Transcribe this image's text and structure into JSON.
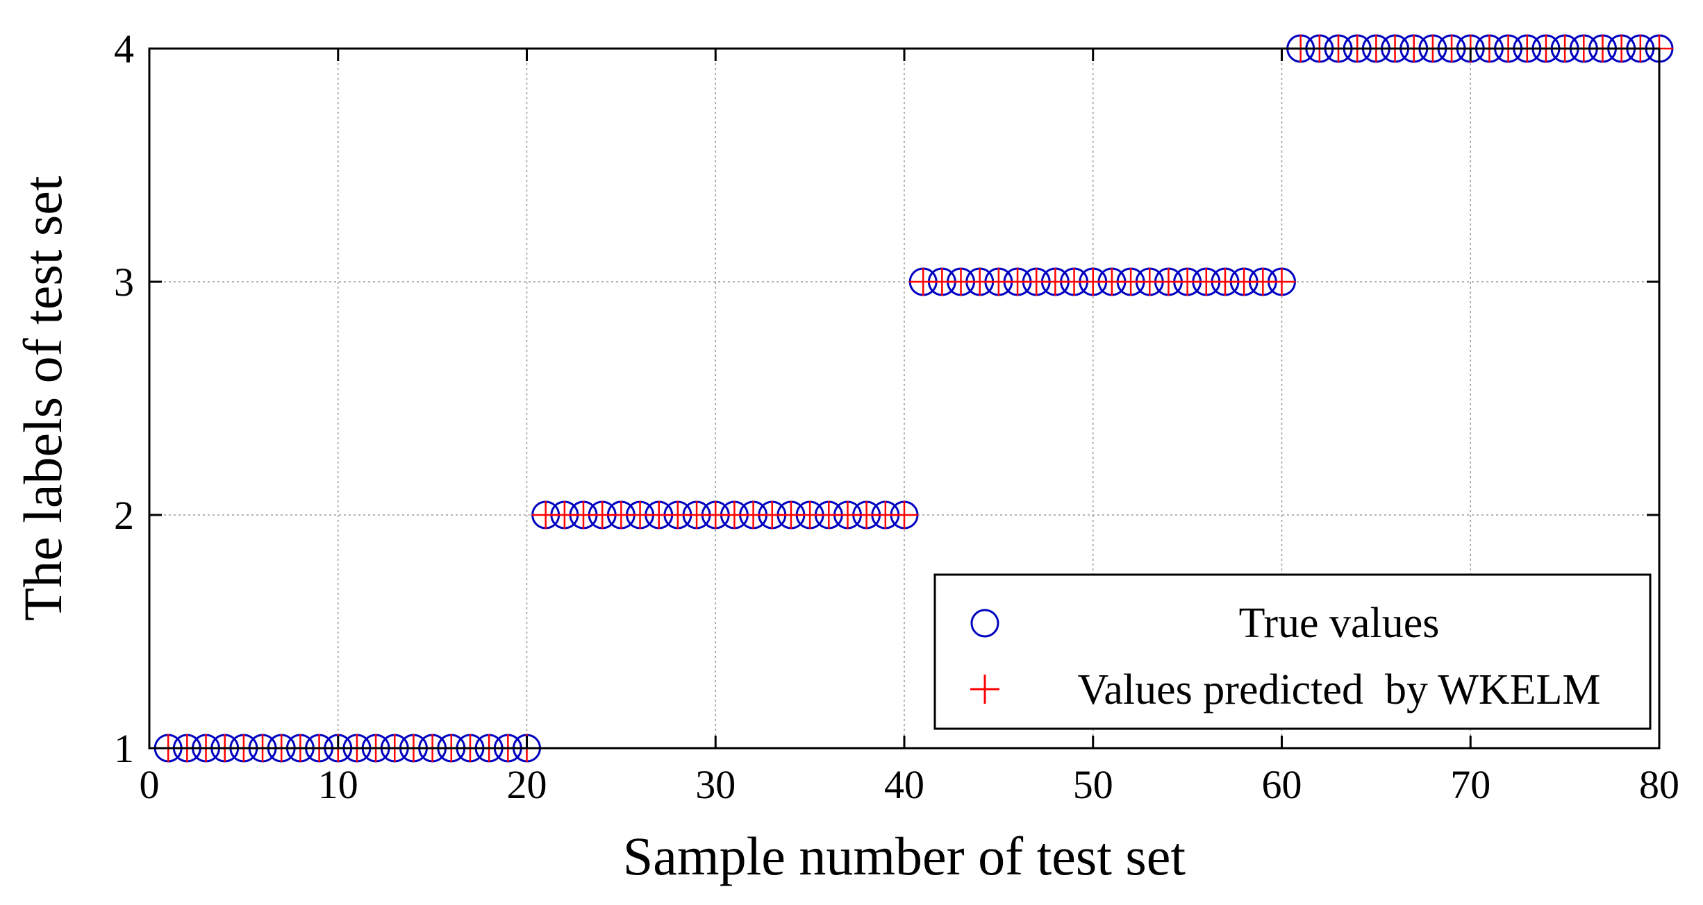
{
  "chart_data": {
    "type": "scatter",
    "title": "",
    "xlabel": "Sample number of test set",
    "ylabel": "The labels of test set",
    "xlim": [
      0,
      80
    ],
    "ylim": [
      1,
      4
    ],
    "xticks": [
      0,
      10,
      20,
      30,
      40,
      50,
      60,
      70,
      80
    ],
    "yticks": [
      1,
      2,
      3,
      4
    ],
    "xtick_labels": [
      "0",
      "10",
      "20",
      "30",
      "40",
      "50",
      "60",
      "70",
      "80"
    ],
    "ytick_labels": [
      "1",
      "2",
      "3",
      "4"
    ],
    "grid": true,
    "legend_position": "bottom-right",
    "x": [
      1,
      2,
      3,
      4,
      5,
      6,
      7,
      8,
      9,
      10,
      11,
      12,
      13,
      14,
      15,
      16,
      17,
      18,
      19,
      20,
      21,
      22,
      23,
      24,
      25,
      26,
      27,
      28,
      29,
      30,
      31,
      32,
      33,
      34,
      35,
      36,
      37,
      38,
      39,
      40,
      41,
      42,
      43,
      44,
      45,
      46,
      47,
      48,
      49,
      50,
      51,
      52,
      53,
      54,
      55,
      56,
      57,
      58,
      59,
      60,
      61,
      62,
      63,
      64,
      65,
      66,
      67,
      68,
      69,
      70,
      71,
      72,
      73,
      74,
      75,
      76,
      77,
      78,
      79,
      80
    ],
    "series": [
      {
        "name": "True values",
        "marker": "circle",
        "color": "#0000c0",
        "values": [
          1,
          1,
          1,
          1,
          1,
          1,
          1,
          1,
          1,
          1,
          1,
          1,
          1,
          1,
          1,
          1,
          1,
          1,
          1,
          1,
          2,
          2,
          2,
          2,
          2,
          2,
          2,
          2,
          2,
          2,
          2,
          2,
          2,
          2,
          2,
          2,
          2,
          2,
          2,
          2,
          3,
          3,
          3,
          3,
          3,
          3,
          3,
          3,
          3,
          3,
          3,
          3,
          3,
          3,
          3,
          3,
          3,
          3,
          3,
          3,
          4,
          4,
          4,
          4,
          4,
          4,
          4,
          4,
          4,
          4,
          4,
          4,
          4,
          4,
          4,
          4,
          4,
          4,
          4,
          4
        ]
      },
      {
        "name": "Values predicted  by WKELM",
        "marker": "plus",
        "color": "#ff0000",
        "values": [
          1,
          1,
          1,
          1,
          1,
          1,
          1,
          1,
          1,
          1,
          1,
          1,
          1,
          1,
          1,
          1,
          1,
          1,
          1,
          1,
          2,
          2,
          2,
          2,
          2,
          2,
          2,
          2,
          2,
          2,
          2,
          2,
          2,
          2,
          2,
          2,
          2,
          2,
          2,
          2,
          3,
          3,
          3,
          3,
          3,
          3,
          3,
          3,
          3,
          3,
          3,
          3,
          3,
          3,
          3,
          3,
          3,
          3,
          3,
          3,
          4,
          4,
          4,
          4,
          4,
          4,
          4,
          4,
          4,
          4,
          4,
          4,
          4,
          4,
          4,
          4,
          4,
          4,
          4,
          4
        ]
      }
    ]
  }
}
